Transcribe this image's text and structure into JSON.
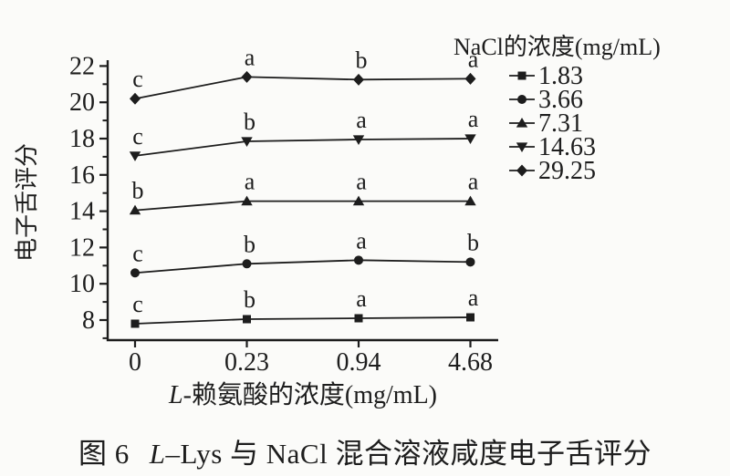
{
  "colors": {
    "ink": "#1d1d1d",
    "background": "#fbfbf9"
  },
  "chart_data": {
    "type": "line",
    "title": "",
    "x_categories": [
      "0",
      "0.23",
      "0.94",
      "4.68"
    ],
    "xlabel_italic": "L",
    "xlabel_rest": "-赖氨酸的浓度(mg/mL)",
    "ylabel": "电子舌评分",
    "y_major_ticks": [
      8,
      10,
      12,
      14,
      16,
      18,
      20,
      22
    ],
    "y_minor_ticks": [
      7,
      9,
      11,
      13,
      15,
      17,
      19,
      21
    ],
    "ylim": [
      6.9,
      22.3
    ],
    "grid": false,
    "legend_position": "top-right",
    "legend_title": "NaCl的浓度(mg/mL)",
    "series": [
      {
        "name": "1.83",
        "marker": "square",
        "values": [
          7.8,
          8.05,
          8.1,
          8.15
        ],
        "point_labels": [
          "c",
          "b",
          "a",
          "a"
        ]
      },
      {
        "name": "3.66",
        "marker": "circle",
        "values": [
          10.6,
          11.1,
          11.3,
          11.2
        ],
        "point_labels": [
          "c",
          "b",
          "a",
          "b"
        ]
      },
      {
        "name": "7.31",
        "marker": "triangle-up",
        "values": [
          14.05,
          14.55,
          14.55,
          14.55
        ],
        "point_labels": [
          "b",
          "a",
          "a",
          "a"
        ]
      },
      {
        "name": "14.63",
        "marker": "triangle-down",
        "values": [
          17.05,
          17.85,
          17.95,
          18.0
        ],
        "point_labels": [
          "c",
          "b",
          "a",
          "a"
        ]
      },
      {
        "name": "29.25",
        "marker": "diamond",
        "values": [
          20.2,
          21.4,
          21.25,
          21.3
        ],
        "point_labels": [
          "c",
          "a",
          "b",
          "a"
        ]
      }
    ]
  },
  "caption": {
    "figure_label": "图 6",
    "title_italic": "L",
    "title_rest": "–Lys 与 NaCl 混合溶液咸度电子舌评分"
  }
}
